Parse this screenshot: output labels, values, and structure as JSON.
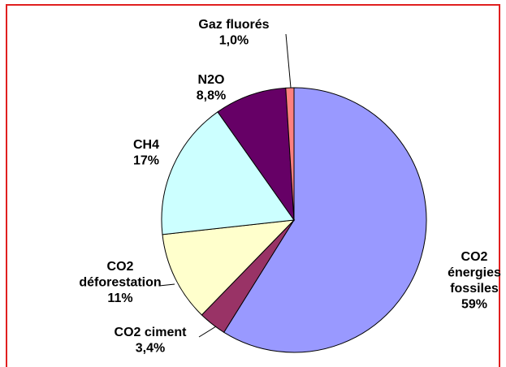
{
  "chart_data": {
    "type": "pie",
    "categories": [
      [
        "CO2",
        "énergies",
        "fossiles"
      ],
      [
        "CO2 ciment"
      ],
      [
        "CO2",
        "déforestation"
      ],
      [
        "CH4"
      ],
      [
        "N2O"
      ],
      [
        "Gaz fluorés"
      ]
    ],
    "values": [
      59,
      3.4,
      11,
      17,
      8.8,
      1.0
    ],
    "value_labels": [
      "59%",
      "3,4%",
      "11%",
      "17%",
      "8,8%",
      "1,0%"
    ],
    "colors": [
      "#9999ff",
      "#993366",
      "#ffffcc",
      "#ccffff",
      "#660066",
      "#ff8080"
    ]
  }
}
